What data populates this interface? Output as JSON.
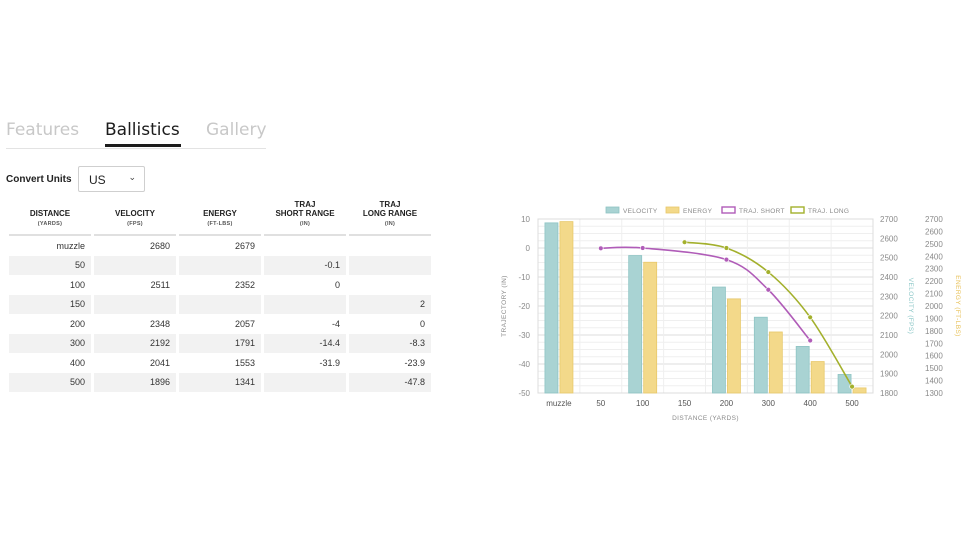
{
  "tabs": [
    {
      "label": "Features",
      "active": false
    },
    {
      "label": "Ballistics",
      "active": true
    },
    {
      "label": "Gallery",
      "active": false
    }
  ],
  "convert": {
    "label": "Convert Units",
    "value": "US"
  },
  "table": {
    "headers": [
      {
        "title": "DISTANCE",
        "sub": "(YARDS)"
      },
      {
        "title": "VELOCITY",
        "sub": "(FPS)"
      },
      {
        "title": "ENERGY",
        "sub": "(FT-LBS)"
      },
      {
        "title": "TRAJ\nSHORT RANGE",
        "sub": "(IN)"
      },
      {
        "title": "TRAJ\nLONG RANGE",
        "sub": "(IN)"
      }
    ],
    "rows": [
      [
        "muzzle",
        "2680",
        "2679",
        "",
        ""
      ],
      [
        "50",
        "",
        "",
        "-0.1",
        ""
      ],
      [
        "100",
        "2511",
        "2352",
        "0",
        ""
      ],
      [
        "150",
        "",
        "",
        "",
        "2"
      ],
      [
        "200",
        "2348",
        "2057",
        "-4",
        "0"
      ],
      [
        "300",
        "2192",
        "1791",
        "-14.4",
        "-8.3"
      ],
      [
        "400",
        "2041",
        "1553",
        "-31.9",
        "-23.9"
      ],
      [
        "500",
        "1896",
        "1341",
        "",
        "-47.8"
      ]
    ]
  },
  "chart_data": {
    "type": "bar",
    "categories": [
      "muzzle",
      "50",
      "100",
      "150",
      "200",
      "300",
      "400",
      "500"
    ],
    "xlabel": "DISTANCE (YARDS)",
    "y_left": {
      "label": "TRAJECTORY (IN)",
      "ticks": [
        10,
        0,
        -10,
        -20,
        -30,
        -40,
        -50
      ],
      "lim": [
        -50,
        10
      ]
    },
    "y_velocity": {
      "label": "VELOCITY (FPS)",
      "ticks": [
        2700,
        2600,
        2500,
        2400,
        2300,
        2200,
        2100,
        2000,
        1900,
        1800
      ],
      "lim": [
        1800,
        2700
      ]
    },
    "y_energy": {
      "label": "ENERGY (FT-LBS)",
      "ticks": [
        2700,
        2600,
        2500,
        2400,
        2300,
        2200,
        2100,
        2000,
        1900,
        1800,
        1700,
        1600,
        1500,
        1400,
        1300
      ],
      "lim": [
        1300,
        2700
      ]
    },
    "series": [
      {
        "name": "VELOCITY",
        "kind": "bar",
        "axis": "velocity",
        "color": "#a9d3d3",
        "values": [
          2680,
          null,
          2511,
          null,
          2348,
          2192,
          2041,
          1896
        ]
      },
      {
        "name": "ENERGY",
        "kind": "bar",
        "axis": "energy",
        "color": "#f3d98a",
        "values": [
          2679,
          null,
          2352,
          null,
          2057,
          1791,
          1553,
          1341
        ]
      },
      {
        "name": "TRAJ. SHORT",
        "kind": "line",
        "axis": "trajectory",
        "color": "#b05cb8",
        "values": [
          null,
          -0.1,
          0,
          null,
          -4,
          -14.4,
          -31.9,
          null
        ]
      },
      {
        "name": "TRAJ. LONG",
        "kind": "line",
        "axis": "trajectory",
        "color": "#a3b02c",
        "values": [
          null,
          null,
          null,
          2,
          0,
          -8.3,
          -23.9,
          -47.8
        ]
      }
    ],
    "legend_position": "top",
    "grid": true
  }
}
